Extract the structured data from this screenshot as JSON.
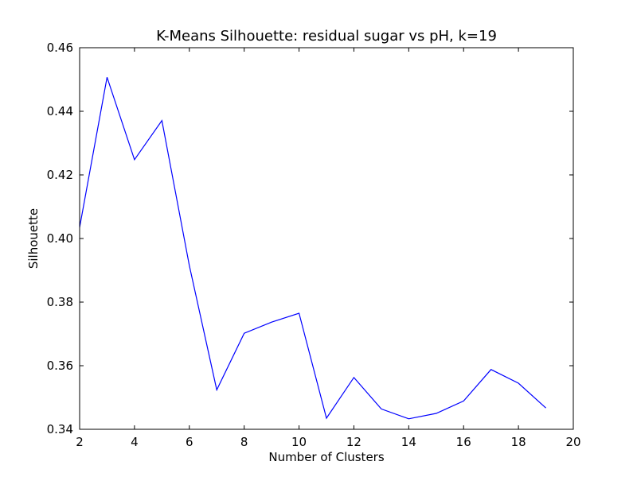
{
  "chart_data": {
    "type": "line",
    "title": "K-Means Silhouette: residual sugar vs pH, k=19",
    "xlabel": "Number of Clusters",
    "ylabel": "Silhouette",
    "xlim": [
      2,
      20
    ],
    "ylim": [
      0.34,
      0.46
    ],
    "xticks": [
      2,
      4,
      6,
      8,
      10,
      12,
      14,
      16,
      18,
      20
    ],
    "yticks": [
      0.34,
      0.36,
      0.38,
      0.4,
      0.42,
      0.44,
      0.46
    ],
    "xtick_labels": [
      "2",
      "4",
      "6",
      "8",
      "10",
      "12",
      "14",
      "16",
      "18",
      "20"
    ],
    "ytick_labels": [
      "0.34",
      "0.36",
      "0.38",
      "0.40",
      "0.42",
      "0.44",
      "0.46"
    ],
    "grid": false,
    "line_color": "#0000ff",
    "series": [
      {
        "x": [
          2,
          3,
          4,
          5,
          6,
          7,
          8,
          9,
          10,
          11,
          12,
          13,
          14,
          15,
          16,
          17,
          18,
          19
        ],
        "values": [
          0.4035,
          0.4507,
          0.4248,
          0.4371,
          0.3915,
          0.3524,
          0.3702,
          0.3737,
          0.3765,
          0.3435,
          0.3563,
          0.3464,
          0.3433,
          0.345,
          0.3489,
          0.3588,
          0.3545,
          0.3467
        ]
      }
    ]
  }
}
